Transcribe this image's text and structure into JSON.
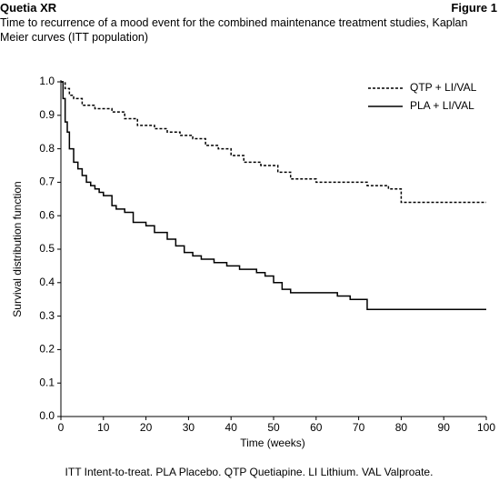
{
  "chart_data": {
    "type": "step",
    "brand": "Quetia XR",
    "figure_label": "Figure 1",
    "title": "Time to recurrence of a mood event for the combined maintenance treatment studies, Kaplan Meier curves (ITT population)",
    "xlabel": "Time (weeks)",
    "ylabel": "Survival distribution function",
    "footnote": "ITT Intent-to-treat. PLA Placebo. QTP Quetiapine. LI Lithium. VAL Valproate.",
    "xlim": [
      0,
      100
    ],
    "xticks": [
      0,
      10,
      20,
      30,
      40,
      50,
      60,
      70,
      80,
      90,
      100
    ],
    "ylim": [
      0,
      1
    ],
    "yticks": [
      {
        "value": 0,
        "label": "0.0"
      },
      0.1,
      0.2,
      0.3,
      0.4,
      0.5,
      0.6,
      0.7,
      0.8,
      0.9,
      {
        "value": 1,
        "label": "1.0"
      }
    ],
    "legend": "upper right",
    "series": [
      {
        "name": "QTP + LI/VAL",
        "color": "#000000",
        "dash": "dashed",
        "x": [
          0,
          1,
          2,
          3,
          5,
          8,
          12,
          15,
          18,
          22,
          25,
          28,
          31,
          34,
          37,
          40,
          43,
          47,
          51,
          54,
          60,
          72,
          77,
          80,
          100
        ],
        "values": [
          1.0,
          0.98,
          0.96,
          0.95,
          0.93,
          0.92,
          0.91,
          0.89,
          0.87,
          0.86,
          0.85,
          0.84,
          0.83,
          0.81,
          0.8,
          0.78,
          0.76,
          0.75,
          0.73,
          0.71,
          0.7,
          0.69,
          0.68,
          0.64,
          0.64
        ]
      },
      {
        "name": "PLA + LI/VAL",
        "color": "#000000",
        "dash": "solid",
        "x": [
          0,
          0.5,
          1,
          1.5,
          2,
          3,
          4,
          5,
          6,
          7,
          8,
          9,
          10,
          12,
          13,
          15,
          17,
          20,
          22,
          25,
          27,
          29,
          31,
          33,
          36,
          39,
          42,
          46,
          48,
          50,
          52,
          54,
          65,
          68,
          72,
          100
        ],
        "values": [
          1.0,
          0.95,
          0.88,
          0.85,
          0.8,
          0.76,
          0.74,
          0.72,
          0.7,
          0.69,
          0.68,
          0.67,
          0.66,
          0.63,
          0.62,
          0.61,
          0.58,
          0.57,
          0.55,
          0.53,
          0.51,
          0.49,
          0.48,
          0.47,
          0.46,
          0.45,
          0.44,
          0.43,
          0.42,
          0.4,
          0.38,
          0.37,
          0.36,
          0.35,
          0.32,
          0.32
        ]
      }
    ]
  }
}
